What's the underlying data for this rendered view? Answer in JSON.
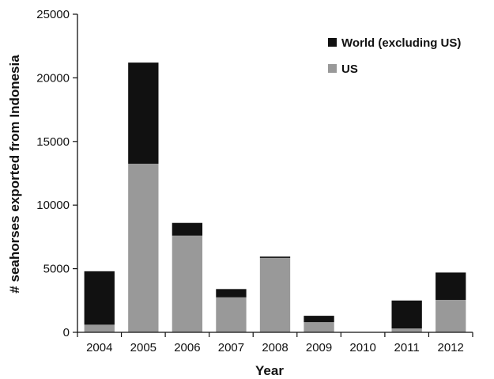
{
  "chart_data": {
    "type": "bar",
    "stacked": true,
    "title": "",
    "xlabel": "Year",
    "ylabel": "# seahorses exported from Indonesia",
    "categories": [
      "2004",
      "2005",
      "2006",
      "2007",
      "2008",
      "2009",
      "2010",
      "2011",
      "2012"
    ],
    "ylim": [
      0,
      25000
    ],
    "yticks": [
      0,
      5000,
      10000,
      15000,
      20000,
      25000
    ],
    "grid": false,
    "legend_position": "top-right",
    "series": [
      {
        "name": "US",
        "color": "#999999",
        "values": [
          600,
          13250,
          7600,
          2750,
          5850,
          800,
          0,
          300,
          2550
        ]
      },
      {
        "name": "World (excluding US)",
        "color": "#111111",
        "values": [
          4200,
          7950,
          1000,
          650,
          100,
          500,
          0,
          2200,
          2150
        ]
      }
    ],
    "legend": [
      {
        "label": "World (excluding US)",
        "color": "#111111"
      },
      {
        "label": "US",
        "color": "#999999"
      }
    ]
  }
}
